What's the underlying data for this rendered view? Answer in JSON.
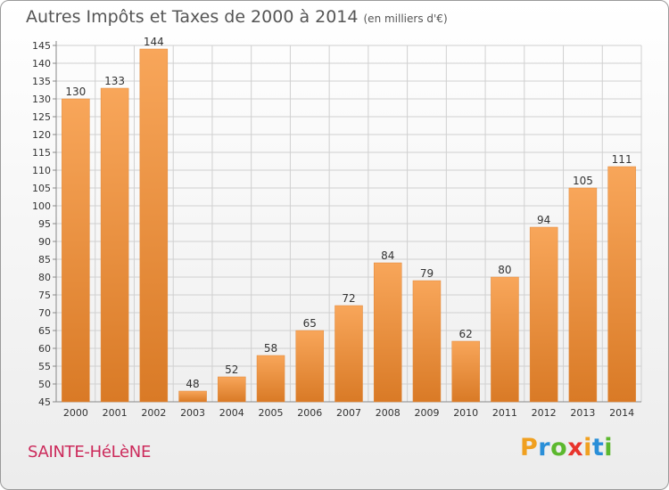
{
  "header": {
    "title": "Autres Impôts et Taxes de 2000 à 2014",
    "subtitle": "(en milliers d'€)"
  },
  "footer": {
    "commune": "SAINTE-HéLèNE"
  },
  "logo": {
    "letters": [
      {
        "char": "P",
        "color": "#f0a020"
      },
      {
        "char": "r",
        "color": "#2a8fd8"
      },
      {
        "char": "o",
        "color": "#5cb82e"
      },
      {
        "char": "x",
        "color": "#e8342c"
      },
      {
        "char": "i",
        "color": "#f0a020"
      },
      {
        "char": "t",
        "color": "#2a8fd8"
      },
      {
        "char": "i",
        "color": "#5cb82e"
      }
    ]
  },
  "colors": {
    "bar_light": "#f8a65a",
    "bar_dark": "#e08a3a",
    "grid": "#d0d0d0",
    "axis": "#888888",
    "text": "#333333"
  },
  "chart_data": {
    "type": "bar",
    "categories": [
      "2000",
      "2001",
      "2002",
      "2003",
      "2004",
      "2005",
      "2006",
      "2007",
      "2008",
      "2009",
      "2010",
      "2011",
      "2012",
      "2013",
      "2014"
    ],
    "values": [
      130,
      133,
      144,
      48,
      52,
      58,
      65,
      72,
      84,
      79,
      62,
      80,
      94,
      105,
      111
    ],
    "title": "Autres Impôts et Taxes de 2000 à 2014",
    "subtitle": "(en milliers d'€)",
    "ylim": [
      45,
      145
    ],
    "ytick_step": 5,
    "grid": true,
    "data_labels": true
  }
}
